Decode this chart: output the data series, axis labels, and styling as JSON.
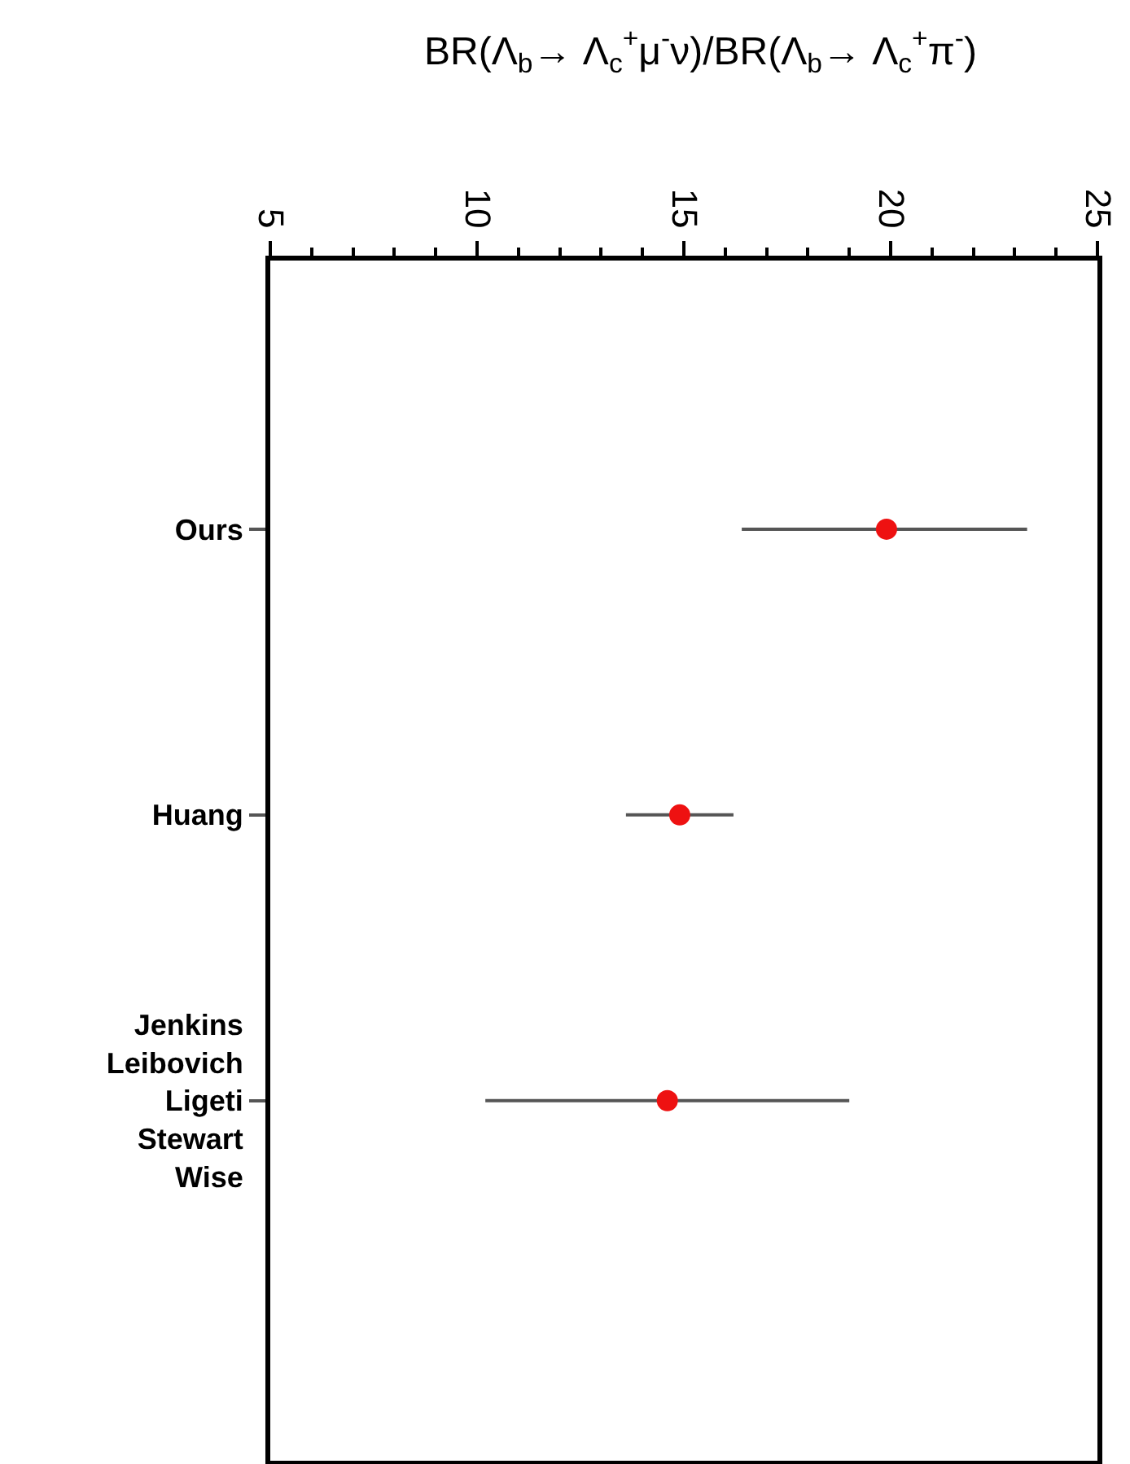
{
  "chart_data": {
    "type": "scatter",
    "orientation": "horizontal",
    "title": "BR(Λ$_{b}$→ Λ$_{c}$$^{+}$μ$^{-}$ν)/BR(Λ$_{b}$→ Λ$_{c}$$^{+}$π$^{-}$)",
    "categories": [
      "Ours",
      "Huang",
      "Jenkins\nLeibovich\nLigeti\nStewart\nWise"
    ],
    "series": [
      {
        "color": "#ee1111",
        "values": [
          19.9,
          14.9,
          14.6
        ],
        "errors": [
          [
            16.4,
            23.3
          ],
          [
            13.6,
            16.2
          ],
          [
            10.2,
            19.0
          ]
        ]
      }
    ],
    "xlim": [
      5,
      25
    ],
    "xticks": [
      5,
      10,
      15,
      20,
      25
    ],
    "marker": "circle"
  }
}
